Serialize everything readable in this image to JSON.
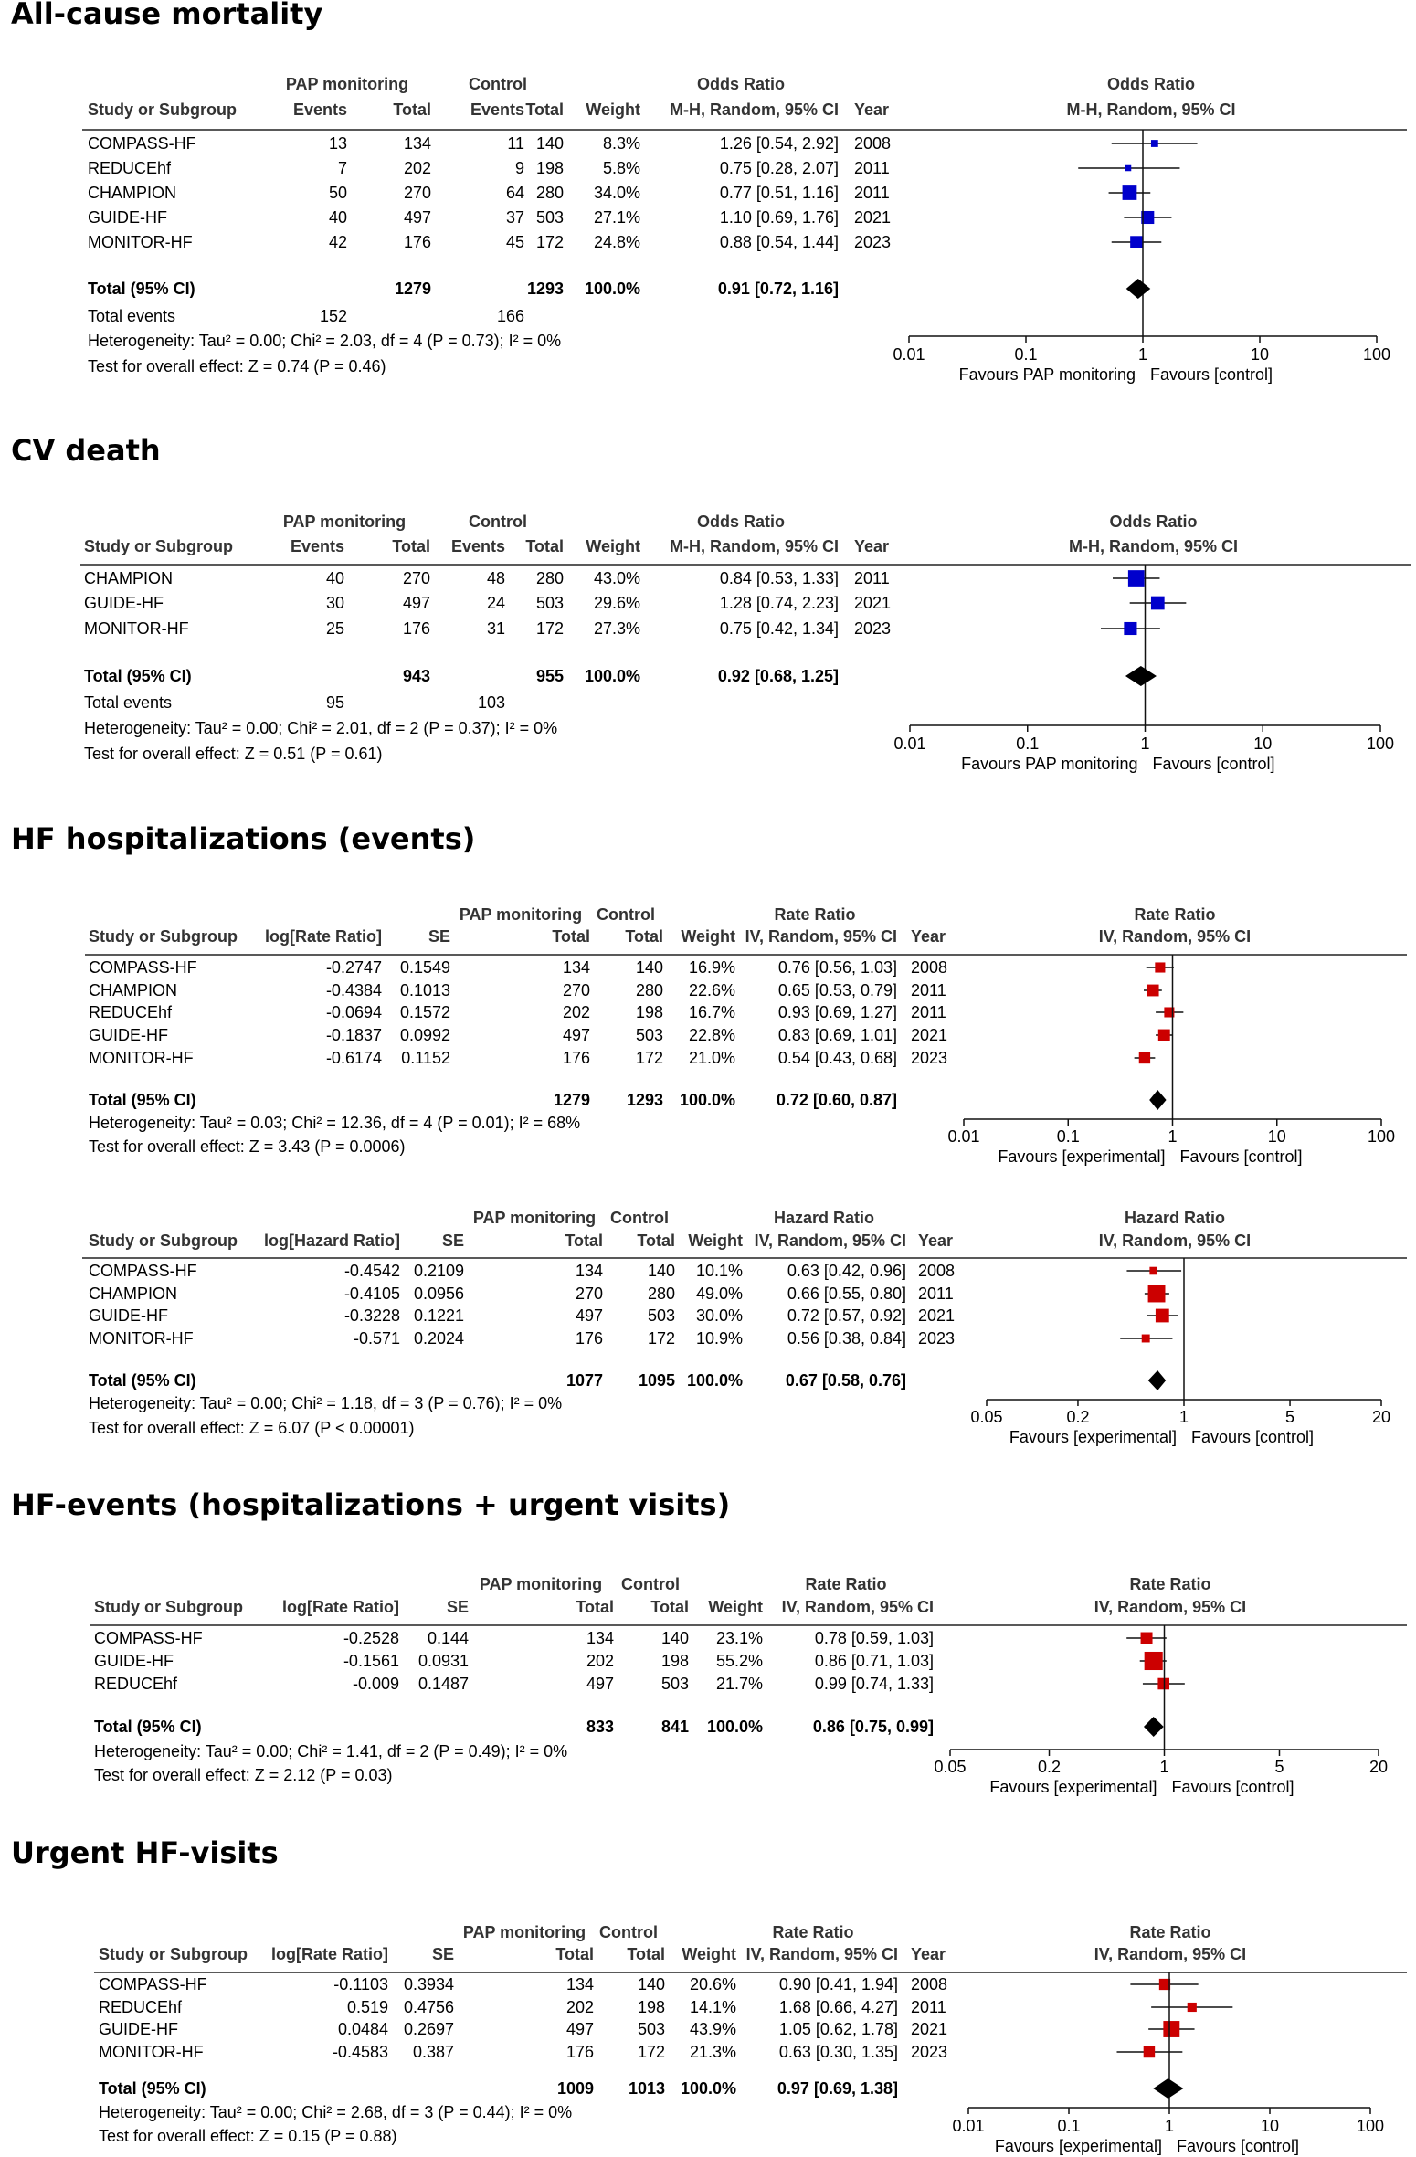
{
  "titles": [
    "All-cause mortality",
    "CV death",
    "HF hospitalizations (events)",
    "HF-events (hospitalizations + urgent visits)",
    "Urgent HF-visits"
  ],
  "chart_data": [
    {
      "type": "table",
      "kind": "events",
      "measure": "Odds Ratio",
      "method": "M-H, Random, 95% CI",
      "group1": "PAP monitoring",
      "group2": "Control",
      "columns": [
        "Study or Subgroup",
        "Events",
        "Total",
        "Events",
        "Total",
        "Weight",
        "M-H, Random, 95% CI",
        "Year"
      ],
      "studies": [
        {
          "name": "COMPASS-HF",
          "e1": "13",
          "n1": "134",
          "e2": "11",
          "n2": "140",
          "weight": "8.3%",
          "ci_text": "1.26 [0.54, 2.92]",
          "year": "2008",
          "est": 1.26,
          "lo": 0.54,
          "hi": 2.92,
          "w": 8.3
        },
        {
          "name": "REDUCEhf",
          "e1": "7",
          "n1": "202",
          "e2": "9",
          "n2": "198",
          "weight": "5.8%",
          "ci_text": "0.75 [0.28, 2.07]",
          "year": "2011",
          "est": 0.75,
          "lo": 0.28,
          "hi": 2.07,
          "w": 5.8
        },
        {
          "name": "CHAMPION",
          "e1": "50",
          "n1": "270",
          "e2": "64",
          "n2": "280",
          "weight": "34.0%",
          "ci_text": "0.77 [0.51, 1.16]",
          "year": "2011",
          "est": 0.77,
          "lo": 0.51,
          "hi": 1.16,
          "w": 34.0
        },
        {
          "name": "GUIDE-HF",
          "e1": "40",
          "n1": "497",
          "e2": "37",
          "n2": "503",
          "weight": "27.1%",
          "ci_text": "1.10 [0.69, 1.76]",
          "year": "2021",
          "est": 1.1,
          "lo": 0.69,
          "hi": 1.76,
          "w": 27.1
        },
        {
          "name": "MONITOR-HF",
          "e1": "42",
          "n1": "176",
          "e2": "45",
          "n2": "172",
          "weight": "24.8%",
          "ci_text": "0.88 [0.54, 1.44]",
          "year": "2023",
          "est": 0.88,
          "lo": 0.54,
          "hi": 1.44,
          "w": 24.8
        }
      ],
      "total": {
        "label": "Total (95% CI)",
        "n1": "1279",
        "n2": "1293",
        "weight": "100.0%",
        "ci_text": "0.91 [0.72, 1.16]",
        "est": 0.91,
        "lo": 0.72,
        "hi": 1.16
      },
      "total_events": {
        "label": "Total events",
        "e1": "152",
        "e2": "166"
      },
      "heterogeneity": "Heterogeneity: Tau² = 0.00; Chi² = 2.03, df = 4 (P = 0.73); I² = 0%",
      "overall": "Test for overall effect: Z = 0.74 (P = 0.46)",
      "axis_ticks": [
        0.01,
        0.1,
        1,
        10,
        100
      ],
      "axis_tick_labels": [
        "0.01",
        "0.1",
        "1",
        "10",
        "100"
      ],
      "favours_left": "Favours PAP monitoring",
      "favours_right": "Favours [control]",
      "marker_color": "#0000cc"
    },
    {
      "type": "table",
      "kind": "events",
      "measure": "Odds Ratio",
      "method": "M-H, Random, 95% CI",
      "group1": "PAP monitoring",
      "group2": "Control",
      "columns": [
        "Study or Subgroup",
        "Events",
        "Total",
        "Events",
        "Total",
        "Weight",
        "M-H, Random, 95% CI",
        "Year"
      ],
      "studies": [
        {
          "name": "CHAMPION",
          "e1": "40",
          "n1": "270",
          "e2": "48",
          "n2": "280",
          "weight": "43.0%",
          "ci_text": "0.84 [0.53, 1.33]",
          "year": "2011",
          "est": 0.84,
          "lo": 0.53,
          "hi": 1.33,
          "w": 43.0
        },
        {
          "name": "GUIDE-HF",
          "e1": "30",
          "n1": "497",
          "e2": "24",
          "n2": "503",
          "weight": "29.6%",
          "ci_text": "1.28 [0.74, 2.23]",
          "year": "2021",
          "est": 1.28,
          "lo": 0.74,
          "hi": 2.23,
          "w": 29.6
        },
        {
          "name": "MONITOR-HF",
          "e1": "25",
          "n1": "176",
          "e2": "31",
          "n2": "172",
          "weight": "27.3%",
          "ci_text": "0.75 [0.42, 1.34]",
          "year": "2023",
          "est": 0.75,
          "lo": 0.42,
          "hi": 1.34,
          "w": 27.3
        }
      ],
      "total": {
        "label": "Total (95% CI)",
        "n1": "943",
        "n2": "955",
        "weight": "100.0%",
        "ci_text": "0.92 [0.68, 1.25]",
        "est": 0.92,
        "lo": 0.68,
        "hi": 1.25
      },
      "total_events": {
        "label": "Total events",
        "e1": "95",
        "e2": "103"
      },
      "heterogeneity": "Heterogeneity: Tau² = 0.00; Chi² = 2.01, df = 2 (P = 0.37); I² = 0%",
      "overall": "Test for overall effect: Z = 0.51 (P = 0.61)",
      "axis_ticks": [
        0.01,
        0.1,
        1,
        10,
        100
      ],
      "axis_tick_labels": [
        "0.01",
        "0.1",
        "1",
        "10",
        "100"
      ],
      "favours_left": "Favours PAP monitoring",
      "favours_right": "Favours [control]",
      "marker_color": "#0000cc"
    },
    {
      "type": "table",
      "kind": "generic",
      "measure": "Rate Ratio",
      "method": "IV, Random, 95% CI",
      "group1": "PAP monitoring",
      "group2": "Control",
      "columns": [
        "Study or Subgroup",
        "log[Rate Ratio]",
        "SE",
        "Total",
        "Total",
        "Weight",
        "IV, Random, 95% CI",
        "Year"
      ],
      "has_year": true,
      "studies": [
        {
          "name": "COMPASS-HF",
          "logv": "-0.2747",
          "se": "0.1549",
          "n1": "134",
          "n2": "140",
          "weight": "16.9%",
          "ci_text": "0.76 [0.56, 1.03]",
          "year": "2008",
          "est": 0.76,
          "lo": 0.56,
          "hi": 1.03,
          "w": 16.9
        },
        {
          "name": "CHAMPION",
          "logv": "-0.4384",
          "se": "0.1013",
          "n1": "270",
          "n2": "280",
          "weight": "22.6%",
          "ci_text": "0.65 [0.53, 0.79]",
          "year": "2011",
          "est": 0.65,
          "lo": 0.53,
          "hi": 0.79,
          "w": 22.6
        },
        {
          "name": "REDUCEhf",
          "logv": "-0.0694",
          "se": "0.1572",
          "n1": "202",
          "n2": "198",
          "weight": "16.7%",
          "ci_text": "0.93 [0.69, 1.27]",
          "year": "2011",
          "est": 0.93,
          "lo": 0.69,
          "hi": 1.27,
          "w": 16.7
        },
        {
          "name": "GUIDE-HF",
          "logv": "-0.1837",
          "se": "0.0992",
          "n1": "497",
          "n2": "503",
          "weight": "22.8%",
          "ci_text": "0.83 [0.69, 1.01]",
          "year": "2021",
          "est": 0.83,
          "lo": 0.69,
          "hi": 1.01,
          "w": 22.8
        },
        {
          "name": "MONITOR-HF",
          "logv": "-0.6174",
          "se": "0.1152",
          "n1": "176",
          "n2": "172",
          "weight": "21.0%",
          "ci_text": "0.54 [0.43, 0.68]",
          "year": "2023",
          "est": 0.54,
          "lo": 0.43,
          "hi": 0.68,
          "w": 21.0
        }
      ],
      "total": {
        "label": "Total (95% CI)",
        "n1": "1279",
        "n2": "1293",
        "weight": "100.0%",
        "ci_text": "0.72 [0.60, 0.87]",
        "est": 0.72,
        "lo": 0.6,
        "hi": 0.87
      },
      "heterogeneity": "Heterogeneity: Tau² = 0.03; Chi² = 12.36, df = 4 (P = 0.01); I² = 68%",
      "overall": "Test for overall effect: Z = 3.43 (P = 0.0006)",
      "axis_ticks": [
        0.01,
        0.1,
        1,
        10,
        100
      ],
      "axis_tick_labels": [
        "0.01",
        "0.1",
        "1",
        "10",
        "100"
      ],
      "favours_left": "Favours [experimental]",
      "favours_right": "Favours [control]",
      "marker_color": "#cc0000"
    },
    {
      "type": "table",
      "kind": "generic",
      "measure": "Hazard Ratio",
      "method": "IV, Random, 95% CI",
      "group1": "PAP monitoring",
      "group2": "Control",
      "columns": [
        "Study or Subgroup",
        "log[Hazard Ratio]",
        "SE",
        "Total",
        "Total",
        "Weight",
        "IV, Random, 95% CI",
        "Year"
      ],
      "has_year": true,
      "studies": [
        {
          "name": "COMPASS-HF",
          "logv": "-0.4542",
          "se": "0.2109",
          "n1": "134",
          "n2": "140",
          "weight": "10.1%",
          "ci_text": "0.63 [0.42, 0.96]",
          "year": "2008",
          "est": 0.63,
          "lo": 0.42,
          "hi": 0.96,
          "w": 10.1
        },
        {
          "name": "CHAMPION",
          "logv": "-0.4105",
          "se": "0.0956",
          "n1": "270",
          "n2": "280",
          "weight": "49.0%",
          "ci_text": "0.66 [0.55, 0.80]",
          "year": "2011",
          "est": 0.66,
          "lo": 0.55,
          "hi": 0.8,
          "w": 49.0
        },
        {
          "name": "GUIDE-HF",
          "logv": "-0.3228",
          "se": "0.1221",
          "n1": "497",
          "n2": "503",
          "weight": "30.0%",
          "ci_text": "0.72 [0.57, 0.92]",
          "year": "2021",
          "est": 0.72,
          "lo": 0.57,
          "hi": 0.92,
          "w": 30.0
        },
        {
          "name": "MONITOR-HF",
          "logv": "-0.571",
          "se": "0.2024",
          "n1": "176",
          "n2": "172",
          "weight": "10.9%",
          "ci_text": "0.56 [0.38, 0.84]",
          "year": "2023",
          "est": 0.56,
          "lo": 0.38,
          "hi": 0.84,
          "w": 10.9
        }
      ],
      "total": {
        "label": "Total (95% CI)",
        "n1": "1077",
        "n2": "1095",
        "weight": "100.0%",
        "ci_text": "0.67 [0.58, 0.76]",
        "est": 0.67,
        "lo": 0.58,
        "hi": 0.76
      },
      "heterogeneity": "Heterogeneity: Tau² = 0.00; Chi² = 1.18, df = 3 (P = 0.76); I² = 0%",
      "overall": "Test for overall effect: Z = 6.07 (P < 0.00001)",
      "axis_ticks": [
        0.05,
        0.2,
        1,
        5,
        20
      ],
      "axis_tick_labels": [
        "0.05",
        "0.2",
        "1",
        "5",
        "20"
      ],
      "favours_left": "Favours [experimental]",
      "favours_right": "Favours [control]",
      "marker_color": "#cc0000"
    },
    {
      "type": "table",
      "kind": "generic",
      "measure": "Rate Ratio",
      "method": "IV, Random, 95% CI",
      "group1": "PAP monitoring",
      "group2": "Control",
      "columns": [
        "Study or Subgroup",
        "log[Rate Ratio]",
        "SE",
        "Total",
        "Total",
        "Weight",
        "IV, Random, 95% CI"
      ],
      "has_year": false,
      "studies": [
        {
          "name": "COMPASS-HF",
          "logv": "-0.2528",
          "se": "0.144",
          "n1": "134",
          "n2": "140",
          "weight": "23.1%",
          "ci_text": "0.78 [0.59, 1.03]",
          "est": 0.78,
          "lo": 0.59,
          "hi": 1.03,
          "w": 23.1
        },
        {
          "name": "GUIDE-HF",
          "logv": "-0.1561",
          "se": "0.0931",
          "n1": "202",
          "n2": "198",
          "weight": "55.2%",
          "ci_text": "0.86 [0.71, 1.03]",
          "est": 0.86,
          "lo": 0.71,
          "hi": 1.03,
          "w": 55.2
        },
        {
          "name": "REDUCEhf",
          "logv": "-0.009",
          "se": "0.1487",
          "n1": "497",
          "n2": "503",
          "weight": "21.7%",
          "ci_text": "0.99 [0.74, 1.33]",
          "est": 0.99,
          "lo": 0.74,
          "hi": 1.33,
          "w": 21.7
        }
      ],
      "total": {
        "label": "Total (95% CI)",
        "n1": "833",
        "n2": "841",
        "weight": "100.0%",
        "ci_text": "0.86 [0.75, 0.99]",
        "est": 0.86,
        "lo": 0.75,
        "hi": 0.99
      },
      "heterogeneity": "Heterogeneity: Tau² = 0.00; Chi² = 1.41, df = 2 (P = 0.49); I² = 0%",
      "overall": "Test for overall effect: Z = 2.12 (P = 0.03)",
      "axis_ticks": [
        0.05,
        0.2,
        1,
        5,
        20
      ],
      "axis_tick_labels": [
        "0.05",
        "0.2",
        "1",
        "5",
        "20"
      ],
      "favours_left": "Favours [experimental]",
      "favours_right": "Favours [control]",
      "marker_color": "#cc0000"
    },
    {
      "type": "table",
      "kind": "generic",
      "measure": "Rate Ratio",
      "method": "IV, Random, 95% CI",
      "group1": "PAP monitoring",
      "group2": "Control",
      "columns": [
        "Study or Subgroup",
        "log[Rate Ratio]",
        "SE",
        "Total",
        "Total",
        "Weight",
        "IV, Random, 95% CI",
        "Year"
      ],
      "has_year": true,
      "studies": [
        {
          "name": "COMPASS-HF",
          "logv": "-0.1103",
          "se": "0.3934",
          "n1": "134",
          "n2": "140",
          "weight": "20.6%",
          "ci_text": "0.90 [0.41, 1.94]",
          "year": "2008",
          "est": 0.9,
          "lo": 0.41,
          "hi": 1.94,
          "w": 20.6
        },
        {
          "name": "REDUCEhf",
          "logv": "0.519",
          "se": "0.4756",
          "n1": "202",
          "n2": "198",
          "weight": "14.1%",
          "ci_text": "1.68 [0.66, 4.27]",
          "year": "2011",
          "est": 1.68,
          "lo": 0.66,
          "hi": 4.27,
          "w": 14.1
        },
        {
          "name": "GUIDE-HF",
          "logv": "0.0484",
          "se": "0.2697",
          "n1": "497",
          "n2": "503",
          "weight": "43.9%",
          "ci_text": "1.05 [0.62, 1.78]",
          "year": "2021",
          "est": 1.05,
          "lo": 0.62,
          "hi": 1.78,
          "w": 43.9
        },
        {
          "name": "MONITOR-HF",
          "logv": "-0.4583",
          "se": "0.387",
          "n1": "176",
          "n2": "172",
          "weight": "21.3%",
          "ci_text": "0.63 [0.30, 1.35]",
          "year": "2023",
          "est": 0.63,
          "lo": 0.3,
          "hi": 1.35,
          "w": 21.3
        }
      ],
      "total": {
        "label": "Total (95% CI)",
        "n1": "1009",
        "n2": "1013",
        "weight": "100.0%",
        "ci_text": "0.97 [0.69, 1.38]",
        "est": 0.97,
        "lo": 0.69,
        "hi": 1.38
      },
      "heterogeneity": "Heterogeneity: Tau² = 0.00; Chi² = 2.68, df = 3 (P = 0.44); I² = 0%",
      "overall": "Test for overall effect: Z = 0.15 (P = 0.88)",
      "axis_ticks": [
        0.01,
        0.1,
        1,
        10,
        100
      ],
      "axis_tick_labels": [
        "0.01",
        "0.1",
        "1",
        "10",
        "100"
      ],
      "favours_left": "Favours [experimental]",
      "favours_right": "Favours [control]",
      "marker_color": "#cc0000"
    }
  ]
}
